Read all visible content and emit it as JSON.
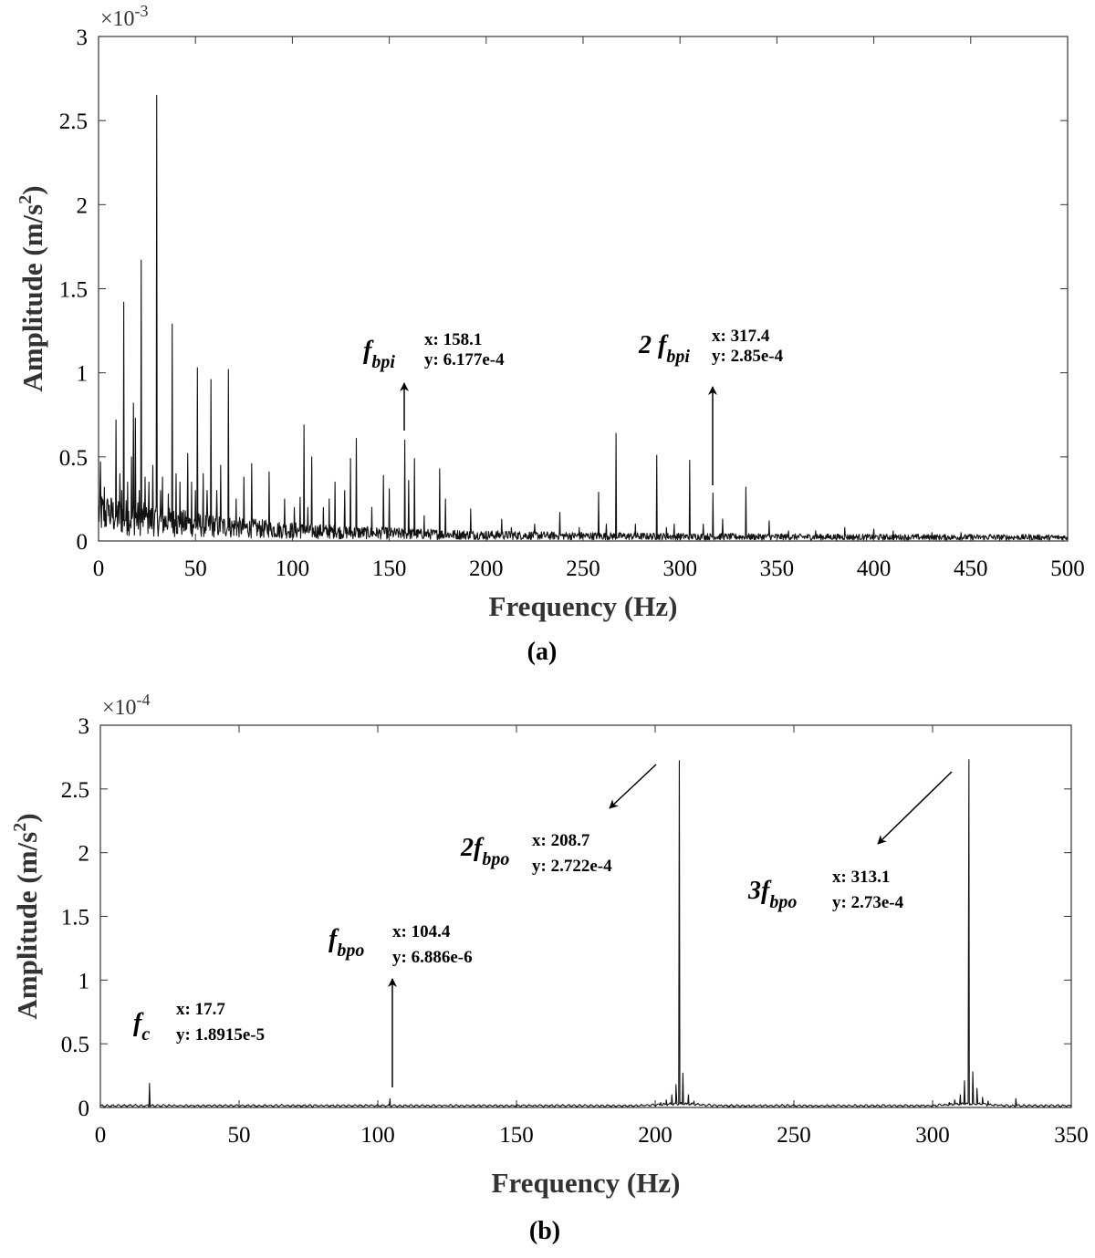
{
  "chart_data": [
    {
      "type": "line",
      "caption": "(a)",
      "xlabel": "Frequency (Hz)",
      "ylabel_main": "Amplitude (m/s",
      "ylabel_sup": "2",
      "ylabel_end": ")",
      "exponent_text": "×10",
      "exponent_power": "-3",
      "xlim": [
        0,
        500
      ],
      "ylim": [
        0,
        3
      ],
      "xticks": [
        0,
        50,
        100,
        150,
        200,
        250,
        300,
        350,
        400,
        450,
        500
      ],
      "yticks": [
        0,
        0.5,
        1,
        1.5,
        2,
        2.5,
        3
      ],
      "ytick_labels": [
        "0",
        "0.5",
        "1",
        "1.5",
        "2",
        "2.5",
        "3"
      ],
      "series": [
        {
          "peaks": [
            [
              1,
              0.47
            ],
            [
              3,
              0.32
            ],
            [
              5,
              0.2
            ],
            [
              7,
              0.15
            ],
            [
              9,
              0.72
            ],
            [
              11,
              0.4
            ],
            [
              12,
              0.3
            ],
            [
              13,
              1.42
            ],
            [
              15,
              0.35
            ],
            [
              17,
              0.5
            ],
            [
              18,
              0.82
            ],
            [
              19,
              0.73
            ],
            [
              21,
              0.3
            ],
            [
              22,
              1.67
            ],
            [
              24,
              0.38
            ],
            [
              26,
              0.35
            ],
            [
              28,
              0.45
            ],
            [
              30,
              2.65
            ],
            [
              32,
              0.3
            ],
            [
              33,
              0.38
            ],
            [
              36,
              0.28
            ],
            [
              38,
              1.29
            ],
            [
              40,
              0.4
            ],
            [
              42,
              0.35
            ],
            [
              46,
              0.52
            ],
            [
              48,
              0.35
            ],
            [
              50,
              0.3
            ],
            [
              51,
              1.03
            ],
            [
              54,
              0.4
            ],
            [
              56,
              0.3
            ],
            [
              58,
              0.96
            ],
            [
              61,
              0.3
            ],
            [
              63,
              0.45
            ],
            [
              67,
              1.02
            ],
            [
              71,
              0.25
            ],
            [
              75,
              0.38
            ],
            [
              79,
              0.46
            ],
            [
              88,
              0.41
            ],
            [
              96,
              0.25
            ],
            [
              101,
              0.2
            ],
            [
              104,
              0.26
            ],
            [
              106,
              0.69
            ],
            [
              108,
              0.2
            ],
            [
              110,
              0.5
            ],
            [
              116,
              0.2
            ],
            [
              119,
              0.25
            ],
            [
              122,
              0.35
            ],
            [
              127,
              0.3
            ],
            [
              130,
              0.49
            ],
            [
              133,
              0.61
            ],
            [
              141,
              0.2
            ],
            [
              147,
              0.39
            ],
            [
              150,
              0.31
            ],
            [
              158,
              0.6
            ],
            [
              160,
              0.36
            ],
            [
              163,
              0.49
            ],
            [
              168,
              0.15
            ],
            [
              176,
              0.43
            ],
            [
              179,
              0.25
            ],
            [
              192,
              0.19
            ],
            [
              208,
              0.13
            ],
            [
              213,
              0.08
            ],
            [
              225,
              0.1
            ],
            [
              238,
              0.17
            ],
            [
              248,
              0.08
            ],
            [
              258,
              0.29
            ],
            [
              262,
              0.1
            ],
            [
              267,
              0.64
            ],
            [
              277,
              0.1
            ],
            [
              288,
              0.51
            ],
            [
              293,
              0.08
            ],
            [
              297,
              0.1
            ],
            [
              305,
              0.48
            ],
            [
              312,
              0.1
            ],
            [
              317,
              0.285
            ],
            [
              322,
              0.13
            ],
            [
              334,
              0.32
            ],
            [
              346,
              0.12
            ],
            [
              356,
              0.06
            ],
            [
              370,
              0.06
            ],
            [
              385,
              0.08
            ],
            [
              400,
              0.07
            ],
            [
              410,
              0.06
            ],
            [
              430,
              0.05
            ],
            [
              445,
              0.05
            ],
            [
              460,
              0.04
            ],
            [
              480,
              0.04
            ],
            [
              495,
              0.03
            ]
          ]
        }
      ],
      "annotations": [
        {
          "symbol": "f",
          "sub": "bpi",
          "x_label": "x: 158.1",
          "y_label": "y: 6.177e-4",
          "peak_x": 158.1,
          "peak_y": 0.6177
        },
        {
          "symbol": "2 f",
          "sub": "bpi",
          "x_label": "x: 317.4",
          "y_label": "y: 2.85e-4",
          "peak_x": 317.4,
          "peak_y": 0.285
        }
      ]
    },
    {
      "type": "line",
      "caption": "(b)",
      "xlabel": "Frequency (Hz)",
      "ylabel_main": "Amplitude (m/s",
      "ylabel_sup": "2",
      "ylabel_end": ")",
      "exponent_text": "×10",
      "exponent_power": "-4",
      "xlim": [
        0,
        350
      ],
      "ylim": [
        0,
        3
      ],
      "xticks": [
        0,
        50,
        100,
        150,
        200,
        250,
        300,
        350
      ],
      "yticks": [
        0,
        0.5,
        1,
        1.5,
        2,
        2.5,
        3
      ],
      "ytick_labels": [
        "0",
        "0.5",
        "1",
        "1.5",
        "2",
        "2.5",
        "3"
      ],
      "series": [
        {
          "peaks": [
            [
              17.7,
              0.189
            ],
            [
              104.4,
              0.069
            ],
            [
              202,
              0.04
            ],
            [
              204,
              0.06
            ],
            [
              206,
              0.1
            ],
            [
              207.5,
              0.18
            ],
            [
              208.7,
              2.722
            ],
            [
              210,
              0.27
            ],
            [
              212,
              0.1
            ],
            [
              214,
              0.05
            ],
            [
              296,
              0.02
            ],
            [
              306,
              0.04
            ],
            [
              308,
              0.06
            ],
            [
              310,
              0.1
            ],
            [
              311.5,
              0.21
            ],
            [
              313.1,
              2.73
            ],
            [
              314.5,
              0.28
            ],
            [
              316,
              0.15
            ],
            [
              318,
              0.08
            ],
            [
              320,
              0.05
            ],
            [
              330,
              0.07
            ]
          ]
        }
      ],
      "annotations": [
        {
          "symbol": "f",
          "sub": "c",
          "x_label": "x: 17.7",
          "y_label": "y: 1.8915e-5",
          "peak_x": 17.7,
          "peak_y": 0.189
        },
        {
          "symbol": "f",
          "sub": "bpo",
          "x_label": "x: 104.4",
          "y_label": "y: 6.886e-6",
          "peak_x": 104.4,
          "peak_y": 0.069
        },
        {
          "symbol": "2f",
          "sub": "bpo",
          "x_label": "x: 208.7",
          "y_label": "y: 2.722e-4",
          "peak_x": 208.7,
          "peak_y": 2.722
        },
        {
          "symbol": "3f",
          "sub": "bpo",
          "x_label": "x: 313.1",
          "y_label": "y: 2.73e-4",
          "peak_x": 313.1,
          "peak_y": 2.73
        }
      ]
    }
  ]
}
